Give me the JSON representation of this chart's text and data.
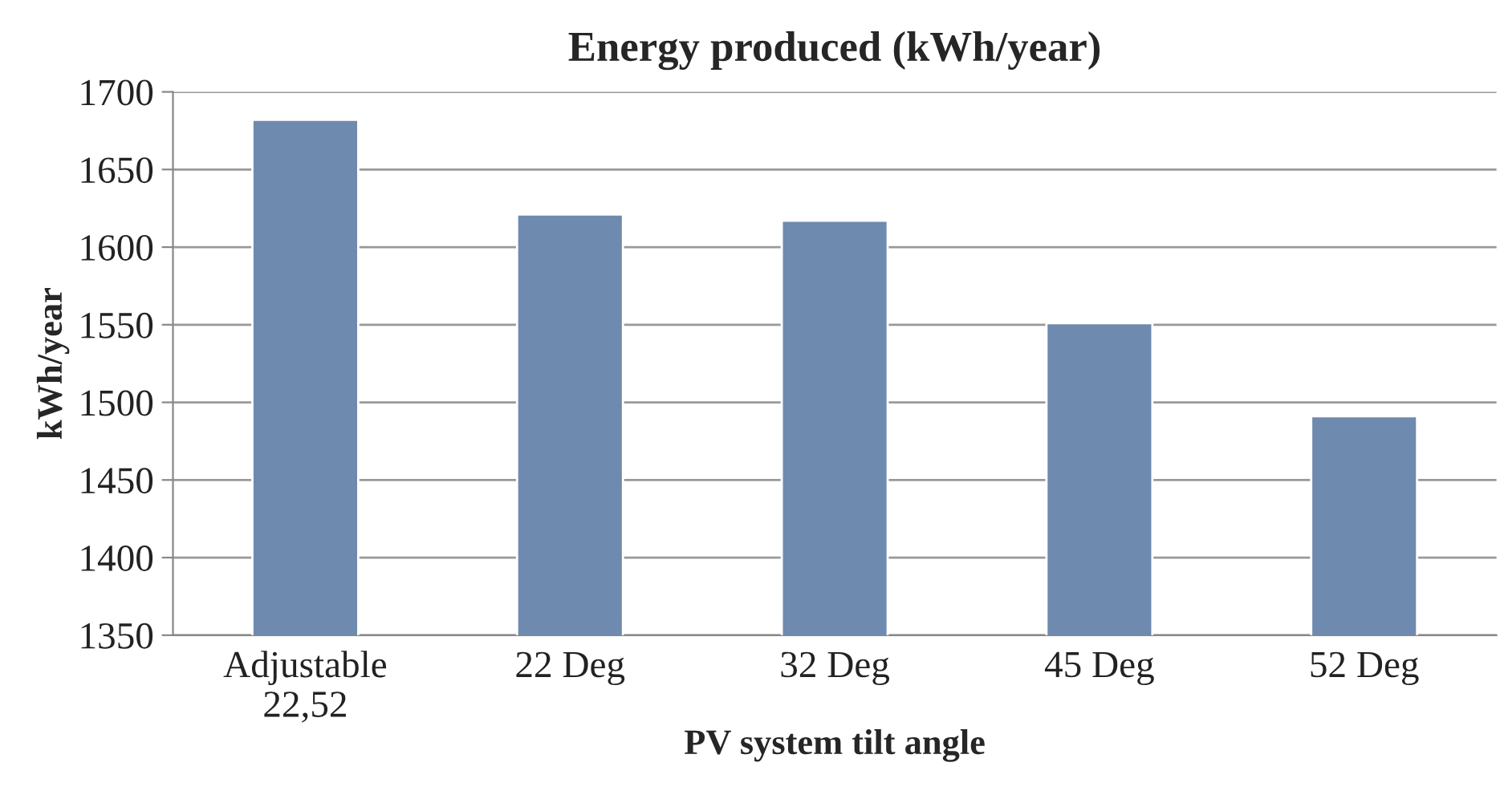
{
  "chart_data": {
    "type": "bar",
    "title": "Energy produced (kWh/year)",
    "xlabel": "PV system tilt angle",
    "ylabel": "kWh/year",
    "categories": [
      "Adjustable\n22,52",
      "22 Deg",
      "32 Deg",
      "45 Deg",
      "52 Deg"
    ],
    "values": [
      1682,
      1621,
      1617,
      1551,
      1491
    ],
    "color": "#6f8aaf",
    "ylim": [
      1350,
      1700
    ],
    "yticks": [
      1350,
      1400,
      1450,
      1500,
      1550,
      1600,
      1650,
      1700
    ],
    "grid": "y"
  }
}
